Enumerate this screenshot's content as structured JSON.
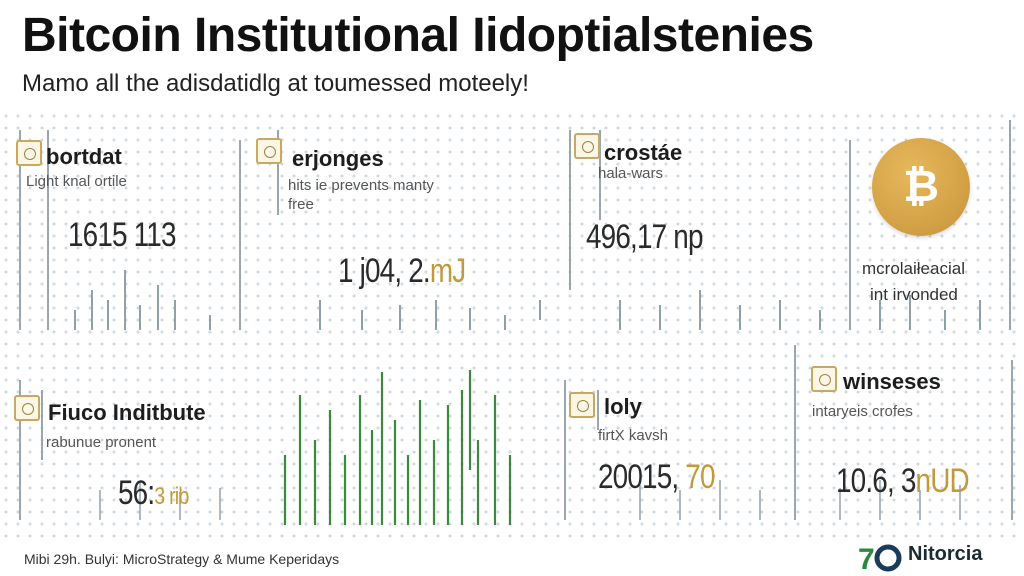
{
  "header": {
    "title": "Bitcoin Institutional Iidoptialstenies",
    "subtitle": "Mamo all the adisdatidlg at toumessed moteely!"
  },
  "cards": [
    {
      "title": "bortdat",
      "sub": "Light knal ortile",
      "value": "1615 113",
      "accent": ""
    },
    {
      "title": "erjonges",
      "sub": "hits ie prevents manty\nfree",
      "value": "1 j04, 2.",
      "accent": "mJ"
    },
    {
      "title": "crostáe",
      "sub": "hala-wars",
      "value": "496,17 np",
      "accent": ""
    },
    {
      "title": "Fiuco Inditbute",
      "sub": "rabunue pronent",
      "value": "56:",
      "accent": "3 rib"
    },
    {
      "title": "loly",
      "sub": "firtX kavsh",
      "value": "20015, ",
      "accent": "70"
    },
    {
      "title": "winseses",
      "sub": "intaryeis crofes",
      "value": "10.6, 3",
      "accent": "nUD"
    }
  ],
  "side_note": {
    "line1": "mcrolaiłeacial",
    "line2": "int irvonded"
  },
  "coin": {
    "symbol": "₿",
    "color": "#d4a247"
  },
  "footer": {
    "source": "Mibi 29h. Bulyi: MicroStrategy & Mume Keperidays",
    "brand": "Nitorcia",
    "brand_mark": "70"
  },
  "colors": {
    "accent": "#c19a3d",
    "bars": "#2e7d32",
    "text": "#1a1a1a"
  }
}
